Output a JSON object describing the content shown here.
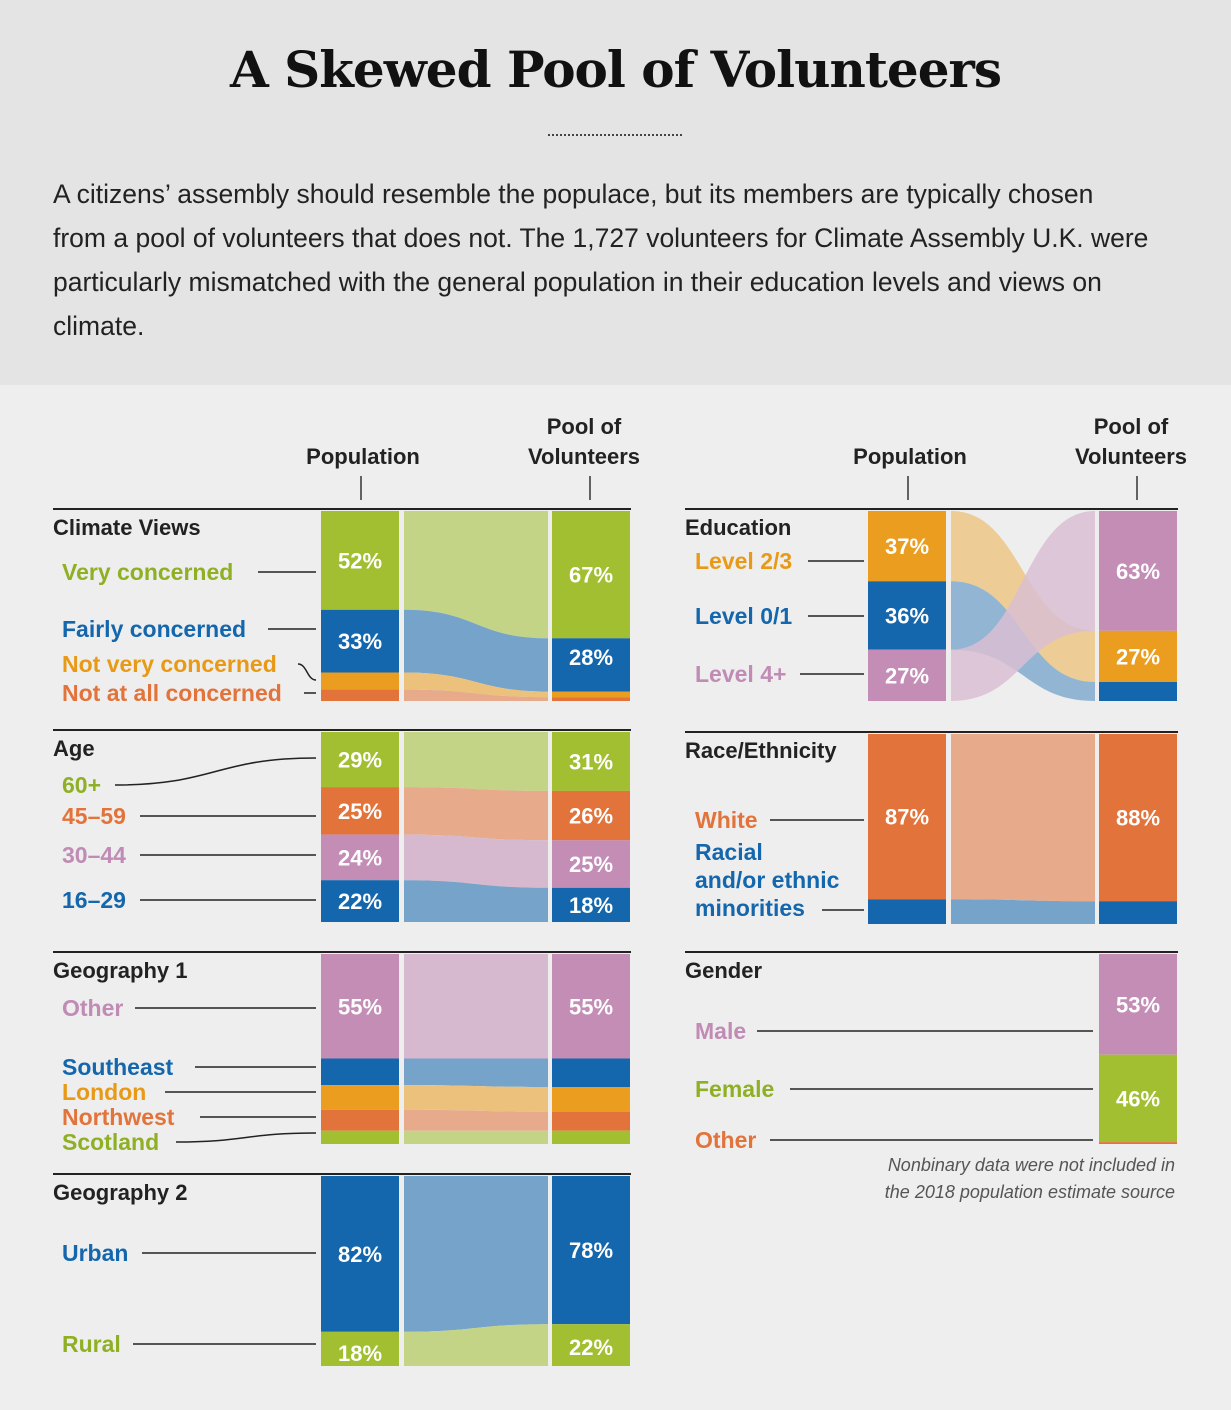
{
  "header": {
    "title": "A Skewed Pool of Volunteers",
    "intro": "A citizens’ assembly should resemble the populace, but its members are typically chosen from a pool of volunteers that does not. The 1,727 volunteers for Climate Assembly U.K. were particularly mismatched with the general population in their education levels and views on climate."
  },
  "colors": {
    "green": "#a2bf31",
    "blue": "#1466ad",
    "orange": "#ea9d1e",
    "red_orange": "#e2733a",
    "pink": "#c38db6"
  },
  "chart_data": {
    "type": "bar",
    "chart_kind": "paired stacked bars with flow bands",
    "column_headers": {
      "population": "Population",
      "volunteers": "Pool of Volunteers"
    },
    "note": "Nonbinary data were not included in the 2018 population estimate source",
    "panels": [
      {
        "id": "climate",
        "title": "Climate Views",
        "categories": [
          {
            "name": "Very concerned",
            "color": "green",
            "population": 52,
            "volunteers": 67,
            "pop_label": "52%",
            "vol_label": "67%"
          },
          {
            "name": "Fairly concerned",
            "color": "blue",
            "population": 33,
            "volunteers": 28,
            "pop_label": "33%",
            "vol_label": "28%"
          },
          {
            "name": "Not very concerned",
            "color": "orange",
            "population": 9,
            "volunteers": 3,
            "pop_label": "",
            "vol_label": ""
          },
          {
            "name": "Not at all concerned",
            "color": "red_orange",
            "population": 6,
            "volunteers": 2,
            "pop_label": "",
            "vol_label": ""
          }
        ]
      },
      {
        "id": "age",
        "title": "Age",
        "categories": [
          {
            "name": "60+",
            "color": "green",
            "population": 29,
            "volunteers": 31,
            "pop_label": "29%",
            "vol_label": "31%"
          },
          {
            "name": "45–59",
            "color": "red_orange",
            "population": 25,
            "volunteers": 26,
            "pop_label": "25%",
            "vol_label": "26%"
          },
          {
            "name": "30–44",
            "color": "pink",
            "population": 24,
            "volunteers": 25,
            "pop_label": "24%",
            "vol_label": "25%"
          },
          {
            "name": "16–29",
            "color": "blue",
            "population": 22,
            "volunteers": 18,
            "pop_label": "22%",
            "vol_label": "18%"
          }
        ]
      },
      {
        "id": "geo1",
        "title": "Geography 1",
        "categories": [
          {
            "name": "Other",
            "color": "pink",
            "population": 55,
            "volunteers": 55,
            "pop_label": "55%",
            "vol_label": "55%"
          },
          {
            "name": "Southeast",
            "color": "blue",
            "population": 14,
            "volunteers": 15,
            "pop_label": "",
            "vol_label": ""
          },
          {
            "name": "London",
            "color": "orange",
            "population": 13,
            "volunteers": 13,
            "pop_label": "",
            "vol_label": ""
          },
          {
            "name": "Northwest",
            "color": "red_orange",
            "population": 11,
            "volunteers": 10,
            "pop_label": "",
            "vol_label": ""
          },
          {
            "name": "Scotland",
            "color": "green",
            "population": 7,
            "volunteers": 7,
            "pop_label": "",
            "vol_label": ""
          }
        ]
      },
      {
        "id": "geo2",
        "title": "Geography 2",
        "categories": [
          {
            "name": "Urban",
            "color": "blue",
            "population": 82,
            "volunteers": 78,
            "pop_label": "82%",
            "vol_label": "78%"
          },
          {
            "name": "Rural",
            "color": "green",
            "population": 18,
            "volunteers": 22,
            "pop_label": "18%",
            "vol_label": "22%"
          }
        ]
      },
      {
        "id": "education",
        "title": "Education",
        "categories": [
          {
            "name": "Level 2/3",
            "color": "orange",
            "population": 37,
            "volunteers": 27,
            "pop_label": "37%",
            "vol_label": "27%"
          },
          {
            "name": "Level 0/1",
            "color": "blue",
            "population": 36,
            "volunteers": 10,
            "pop_label": "36%",
            "vol_label": ""
          },
          {
            "name": "Level 4+",
            "color": "pink",
            "population": 27,
            "volunteers": 63,
            "pop_label": "27%",
            "vol_label": "63%"
          }
        ]
      },
      {
        "id": "race",
        "title": "Race/Ethnicity",
        "categories": [
          {
            "name": "White",
            "color": "red_orange",
            "population": 87,
            "volunteers": 88,
            "pop_label": "87%",
            "vol_label": "88%"
          },
          {
            "name": "Racial and/or ethnic minorities",
            "color": "blue",
            "population": 13,
            "volunteers": 12,
            "pop_label": "",
            "vol_label": ""
          }
        ]
      },
      {
        "id": "gender",
        "title": "Gender",
        "categories": [
          {
            "name": "Male",
            "color": "pink",
            "population": null,
            "volunteers": 53,
            "pop_label": "",
            "vol_label": "53%"
          },
          {
            "name": "Female",
            "color": "green",
            "population": null,
            "volunteers": 46,
            "pop_label": "",
            "vol_label": "46%"
          },
          {
            "name": "Other",
            "color": "red_orange",
            "population": null,
            "volunteers": 1,
            "pop_label": "",
            "vol_label": ""
          }
        ]
      }
    ]
  }
}
